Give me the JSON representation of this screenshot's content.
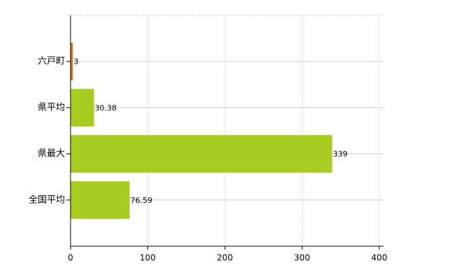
{
  "chart_data": {
    "type": "bar",
    "orientation": "horizontal",
    "categories": [
      "六戸町",
      "県平均",
      "県最大",
      "全国平均"
    ],
    "values": [
      3,
      30.38,
      339,
      76.59
    ],
    "colors": [
      "#e07818",
      "#a8cc20",
      "#a8cc20",
      "#a8cc20"
    ],
    "xlim": [
      0,
      400
    ],
    "xticks": [
      0,
      100,
      200,
      300,
      400
    ],
    "grid": true
  }
}
